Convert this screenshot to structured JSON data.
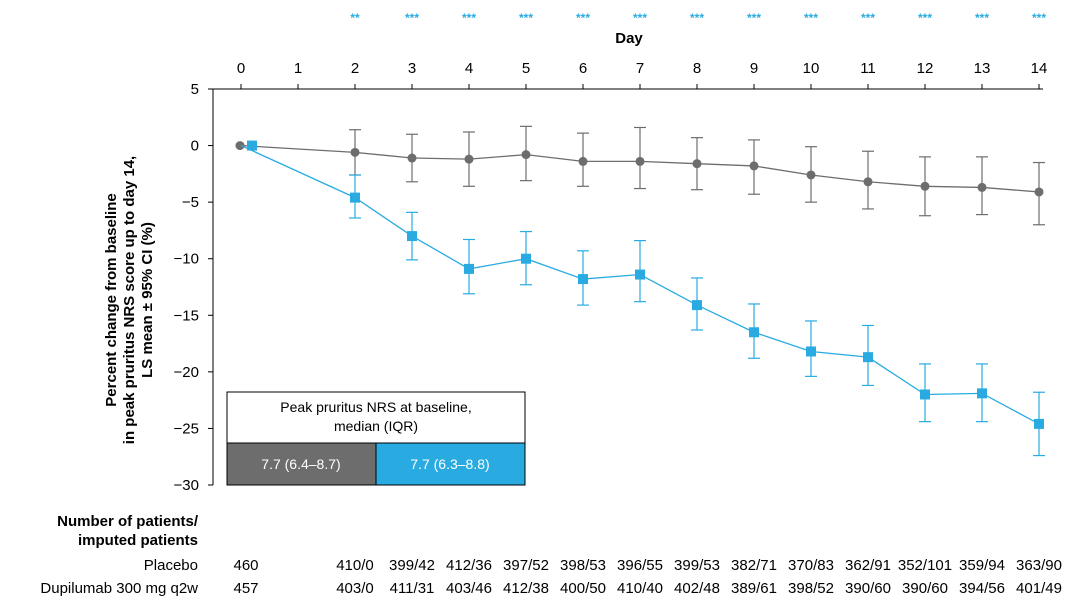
{
  "chart_data": {
    "type": "line",
    "xlabel": "Day",
    "ylabel": [
      "Percent change from baseline",
      "in peak pruritus NRS score up to day 14,",
      "LS mean ± 95% CI (%)"
    ],
    "x": [
      0,
      1,
      2,
      3,
      4,
      5,
      6,
      7,
      8,
      9,
      10,
      11,
      12,
      13,
      14
    ],
    "x_ticks": [
      "0",
      "1",
      "2",
      "3",
      "4",
      "5",
      "6",
      "7",
      "8",
      "9",
      "10",
      "11",
      "12",
      "13",
      "14"
    ],
    "y_ticks": [
      "5",
      "0",
      "−5",
      "−10",
      "−15",
      "−20",
      "−25",
      "−30"
    ],
    "ylim": [
      -30,
      5
    ],
    "xlim": [
      0,
      14
    ],
    "significance": [
      {
        "day": 2,
        "label": "**"
      },
      {
        "day": 3,
        "label": "***"
      },
      {
        "day": 4,
        "label": "***"
      },
      {
        "day": 5,
        "label": "***"
      },
      {
        "day": 6,
        "label": "***"
      },
      {
        "day": 7,
        "label": "***"
      },
      {
        "day": 8,
        "label": "***"
      },
      {
        "day": 9,
        "label": "***"
      },
      {
        "day": 10,
        "label": "***"
      },
      {
        "day": 11,
        "label": "***"
      },
      {
        "day": 12,
        "label": "***"
      },
      {
        "day": 13,
        "label": "***"
      },
      {
        "day": 14,
        "label": "***"
      }
    ],
    "series": [
      {
        "name": "Placebo",
        "color": "#6d6d6d",
        "marker": "circle",
        "points": [
          {
            "x": 0,
            "y": 0
          },
          {
            "x": 2,
            "y": -0.6,
            "lo": -2.6,
            "hi": 1.4
          },
          {
            "x": 3,
            "y": -1.1,
            "lo": -3.2,
            "hi": 1.0
          },
          {
            "x": 4,
            "y": -1.2,
            "lo": -3.6,
            "hi": 1.2
          },
          {
            "x": 5,
            "y": -0.8,
            "lo": -3.1,
            "hi": 1.7
          },
          {
            "x": 6,
            "y": -1.4,
            "lo": -3.6,
            "hi": 1.1
          },
          {
            "x": 7,
            "y": -1.4,
            "lo": -3.8,
            "hi": 1.6
          },
          {
            "x": 8,
            "y": -1.6,
            "lo": -3.9,
            "hi": 0.7
          },
          {
            "x": 9,
            "y": -1.8,
            "lo": -4.3,
            "hi": 0.5
          },
          {
            "x": 10,
            "y": -2.6,
            "lo": -5.0,
            "hi": -0.1
          },
          {
            "x": 11,
            "y": -3.2,
            "lo": -5.6,
            "hi": -0.5
          },
          {
            "x": 12,
            "y": -3.6,
            "lo": -6.2,
            "hi": -1.0
          },
          {
            "x": 13,
            "y": -3.7,
            "lo": -6.1,
            "hi": -1.0
          },
          {
            "x": 14,
            "y": -4.1,
            "lo": -7.0,
            "hi": -1.5
          }
        ]
      },
      {
        "name": "Dupilumab 300 mg q2w",
        "color": "#29abe2",
        "marker": "square",
        "points": [
          {
            "x": 0,
            "y": 0
          },
          {
            "x": 2,
            "y": -4.6,
            "lo": -6.4,
            "hi": -2.6
          },
          {
            "x": 3,
            "y": -8.0,
            "lo": -10.1,
            "hi": -5.9
          },
          {
            "x": 4,
            "y": -10.9,
            "lo": -13.1,
            "hi": -8.3
          },
          {
            "x": 5,
            "y": -10.0,
            "lo": -12.3,
            "hi": -7.6
          },
          {
            "x": 6,
            "y": -11.8,
            "lo": -14.1,
            "hi": -9.3
          },
          {
            "x": 7,
            "y": -11.4,
            "lo": -13.8,
            "hi": -8.4
          },
          {
            "x": 8,
            "y": -14.1,
            "lo": -16.3,
            "hi": -11.7
          },
          {
            "x": 9,
            "y": -16.5,
            "lo": -18.8,
            "hi": -14.0
          },
          {
            "x": 10,
            "y": -18.2,
            "lo": -20.4,
            "hi": -15.5
          },
          {
            "x": 11,
            "y": -18.7,
            "lo": -21.2,
            "hi": -15.9
          },
          {
            "x": 12,
            "y": -22.0,
            "lo": -24.4,
            "hi": -19.3
          },
          {
            "x": 13,
            "y": -21.9,
            "lo": -24.4,
            "hi": -19.3
          },
          {
            "x": 14,
            "y": -24.6,
            "lo": -27.4,
            "hi": -21.8
          }
        ]
      }
    ],
    "baseline_table": {
      "header_line1": "Peak pruritus NRS at baseline,",
      "header_line2": "median (IQR)",
      "placebo_value": "7.7 (6.4–8.7)",
      "placebo_color": "#6d6d6d",
      "dupilumab_value": "7.7 (6.3–8.8)",
      "dupilumab_color": "#29abe2"
    },
    "patients_table": {
      "header_line1": "Number of patients/",
      "header_line2": "imputed patients",
      "rows": [
        {
          "label": "Placebo",
          "values": [
            {
              "day": 0,
              "text": "460"
            },
            {
              "day": 2,
              "text": "410/0"
            },
            {
              "day": 3,
              "text": "399/42"
            },
            {
              "day": 4,
              "text": "412/36"
            },
            {
              "day": 5,
              "text": "397/52"
            },
            {
              "day": 6,
              "text": "398/53"
            },
            {
              "day": 7,
              "text": "396/55"
            },
            {
              "day": 8,
              "text": "399/53"
            },
            {
              "day": 9,
              "text": "382/71"
            },
            {
              "day": 10,
              "text": "370/83"
            },
            {
              "day": 11,
              "text": "362/91"
            },
            {
              "day": 12,
              "text": "352/101"
            },
            {
              "day": 13,
              "text": "359/94"
            },
            {
              "day": 14,
              "text": "363/90"
            }
          ]
        },
        {
          "label": "Dupilumab 300 mg q2w",
          "values": [
            {
              "day": 0,
              "text": "457"
            },
            {
              "day": 2,
              "text": "403/0"
            },
            {
              "day": 3,
              "text": "411/31"
            },
            {
              "day": 4,
              "text": "403/46"
            },
            {
              "day": 5,
              "text": "412/38"
            },
            {
              "day": 6,
              "text": "400/50"
            },
            {
              "day": 7,
              "text": "410/40"
            },
            {
              "day": 8,
              "text": "402/48"
            },
            {
              "day": 9,
              "text": "389/61"
            },
            {
              "day": 10,
              "text": "398/52"
            },
            {
              "day": 11,
              "text": "390/60"
            },
            {
              "day": 12,
              "text": "390/60"
            },
            {
              "day": 13,
              "text": "394/56"
            },
            {
              "day": 14,
              "text": "401/49"
            }
          ]
        }
      ]
    },
    "axis_color": "#000000",
    "significance_color": "#29abe2"
  }
}
